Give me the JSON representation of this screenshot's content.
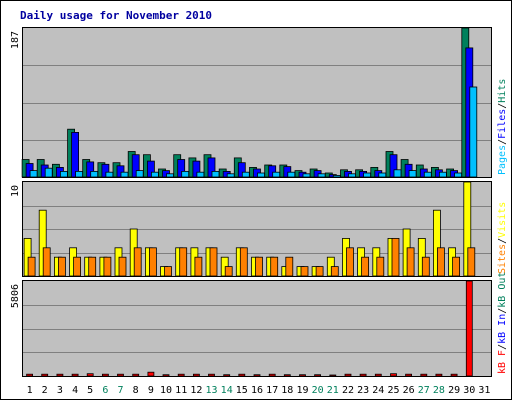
{
  "chart_data": {
    "type": "bar",
    "title": "Daily usage for November 2010",
    "days": [
      "1",
      "2",
      "3",
      "4",
      "5",
      "6",
      "7",
      "8",
      "9",
      "10",
      "11",
      "12",
      "13",
      "14",
      "15",
      "16",
      "17",
      "18",
      "19",
      "20",
      "21",
      "22",
      "23",
      "24",
      "25",
      "26",
      "27",
      "28",
      "29",
      "30",
      "31"
    ],
    "weekend_days": [
      "6",
      "7",
      "13",
      "14",
      "20",
      "21",
      "27",
      "28"
    ],
    "colors": {
      "hits": "#00805c",
      "files": "#0000ff",
      "pages": "#00c0ff",
      "visits": "#ffff00",
      "sites": "#ff8000",
      "kb_in": "#0000ff",
      "kb_out": "#00805c",
      "kb_f": "#ff0000",
      "plot_bg": "#c0c0c0",
      "grid": "#808080",
      "title": "#0000a0",
      "weekday_label": "#000000",
      "weekend_label": "#00805c"
    },
    "panels": [
      {
        "id": "hits",
        "ymax_label": "187",
        "ymax": 187,
        "legend": [
          "Pages",
          "Files",
          "Hits"
        ],
        "legend_seps": [
          "/",
          "/"
        ],
        "legend_colors": [
          "#00c0ff",
          "#0000ff",
          "#00805c"
        ],
        "series": [
          {
            "name": "Hits",
            "color": "#00805c",
            "values": [
              22,
              22,
              16,
              60,
              22,
              18,
              18,
              32,
              28,
              10,
              28,
              24,
              28,
              10,
              24,
              12,
              15,
              15,
              8,
              10,
              5,
              9,
              9,
              12,
              32,
              22,
              15,
              12,
              10,
              187,
              0
            ]
          },
          {
            "name": "Files",
            "color": "#0000ff",
            "values": [
              17,
              15,
              12,
              56,
              19,
              16,
              14,
              28,
              20,
              8,
              22,
              20,
              24,
              7,
              18,
              10,
              14,
              13,
              6,
              8,
              3,
              7,
              7,
              8,
              28,
              16,
              10,
              9,
              8,
              162,
              0
            ]
          },
          {
            "name": "Pages",
            "color": "#00c0ff",
            "values": [
              8,
              11,
              7,
              7,
              7,
              6,
              6,
              8,
              6,
              4,
              7,
              6,
              7,
              4,
              6,
              5,
              6,
              6,
              4,
              4,
              2,
              4,
              5,
              5,
              9,
              8,
              6,
              6,
              5,
              113,
              0
            ]
          }
        ]
      },
      {
        "id": "visits",
        "ymax_label": "10",
        "ymax": 10,
        "legend": [
          "Sites",
          "Visits"
        ],
        "legend_seps": [
          "/"
        ],
        "legend_colors": [
          "#ff8000",
          "#ffff00"
        ],
        "series": [
          {
            "name": "Visits",
            "color": "#ffff00",
            "values": [
              4,
              7,
              2,
              3,
              2,
              2,
              3,
              5,
              3,
              1,
              3,
              3,
              3,
              2,
              3,
              2,
              2,
              1,
              1,
              1,
              2,
              4,
              3,
              3,
              4,
              5,
              4,
              7,
              3,
              10,
              0
            ]
          },
          {
            "name": "Sites",
            "color": "#ff8000",
            "values": [
              2,
              3,
              2,
              2,
              2,
              2,
              2,
              3,
              3,
              1,
              3,
              2,
              3,
              1,
              3,
              2,
              2,
              2,
              1,
              1,
              1,
              3,
              2,
              2,
              4,
              3,
              2,
              3,
              2,
              3,
              0
            ]
          }
        ]
      },
      {
        "id": "kbytes",
        "ymax_label": "5806",
        "ymax": 5806,
        "legend": [
          "kB F",
          "kB In",
          "kB Out"
        ],
        "legend_seps": [
          "/",
          "/"
        ],
        "legend_colors": [
          "#ff0000",
          "#0000ff",
          "#00805c"
        ],
        "series": [
          {
            "name": "kB F",
            "color": "#ff0000",
            "values": [
              110,
              110,
              110,
              110,
              140,
              110,
              110,
              110,
              230,
              80,
              110,
              110,
              110,
              80,
              110,
              80,
              110,
              80,
              80,
              80,
              60,
              110,
              110,
              110,
              140,
              110,
              110,
              110,
              110,
              5806,
              0
            ]
          }
        ]
      }
    ]
  }
}
